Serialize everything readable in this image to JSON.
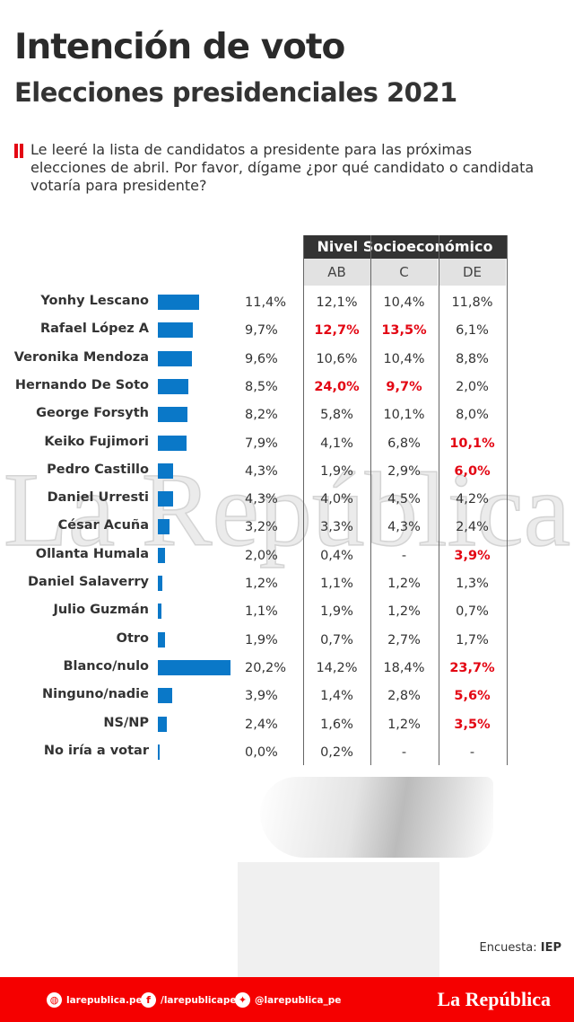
{
  "header": {
    "title": "Intención de voto",
    "subtitle": "Elecciones presidenciales 2021"
  },
  "question": "Le leeré la lista de candidatos a presidente para las próximas elecciones de abril. Por favor, dígame ¿por qué candidato o candidata votaría para presidente?",
  "watermark": "La República",
  "table": {
    "group_header": "Nivel Socioeconómico",
    "columns": [
      "AB",
      "C",
      "DE"
    ]
  },
  "colors": {
    "bar": "#0a78c8",
    "highlight": "#e30613",
    "footer": "#f50000"
  },
  "chart_data": {
    "type": "bar",
    "categories": [
      "Yonhy Lescano",
      "Rafael López  A",
      "Veronika Mendoza",
      "Hernando De Soto",
      "George Forsyth",
      "Keiko Fujimori",
      "Pedro Castillo",
      "Daniel Urresti",
      "César Acuña",
      "Ollanta Humala",
      "Daniel Salaverry",
      "Julio Guzmán",
      "Otro",
      "Blanco/nulo",
      "Ninguno/nadie",
      "NS/NP",
      "No iría a votar"
    ],
    "values": [
      11.4,
      9.7,
      9.6,
      8.5,
      8.2,
      7.9,
      4.3,
      4.3,
      3.2,
      2.0,
      1.2,
      1.1,
      1.9,
      20.2,
      3.9,
      2.4,
      0.0
    ],
    "labels": [
      "11,4%",
      "9,7%",
      "9,6%",
      "8,5%",
      "8,2%",
      "7,9%",
      "4,3%",
      "4,3%",
      "3,2%",
      "2,0%",
      "1,2%",
      "1,1%",
      "1,9%",
      "20,2%",
      "3,9%",
      "2,4%",
      "0,0%"
    ],
    "breakdown": [
      [
        {
          "v": "12,1%"
        },
        {
          "v": "10,4%"
        },
        {
          "v": "11,8%"
        }
      ],
      [
        {
          "v": "12,7%",
          "hl": true
        },
        {
          "v": "13,5%",
          "hl": true
        },
        {
          "v": "6,1%"
        }
      ],
      [
        {
          "v": "10,6%"
        },
        {
          "v": "10,4%"
        },
        {
          "v": "8,8%"
        }
      ],
      [
        {
          "v": "24,0%",
          "hl": true
        },
        {
          "v": "9,7%",
          "hl": true
        },
        {
          "v": "2,0%"
        }
      ],
      [
        {
          "v": "5,8%"
        },
        {
          "v": "10,1%"
        },
        {
          "v": "8,0%"
        }
      ],
      [
        {
          "v": "4,1%"
        },
        {
          "v": "6,8%"
        },
        {
          "v": "10,1%",
          "hl": true
        }
      ],
      [
        {
          "v": "1,9%"
        },
        {
          "v": "2,9%"
        },
        {
          "v": "6,0%",
          "hl": true
        }
      ],
      [
        {
          "v": "4,0%"
        },
        {
          "v": "4,5%"
        },
        {
          "v": "4,2%"
        }
      ],
      [
        {
          "v": "3,3%"
        },
        {
          "v": "4,3%"
        },
        {
          "v": "2,4%"
        }
      ],
      [
        {
          "v": "0,4%"
        },
        {
          "v": "-"
        },
        {
          "v": "3,9%",
          "hl": true
        }
      ],
      [
        {
          "v": "1,1%"
        },
        {
          "v": "1,2%"
        },
        {
          "v": "1,3%"
        }
      ],
      [
        {
          "v": "1,9%"
        },
        {
          "v": "1,2%"
        },
        {
          "v": "0,7%"
        }
      ],
      [
        {
          "v": "0,7%"
        },
        {
          "v": "2,7%"
        },
        {
          "v": "1,7%"
        }
      ],
      [
        {
          "v": "14,2%"
        },
        {
          "v": "18,4%"
        },
        {
          "v": "23,7%",
          "hl": true
        }
      ],
      [
        {
          "v": "1,4%"
        },
        {
          "v": "2,8%"
        },
        {
          "v": "5,6%",
          "hl": true
        }
      ],
      [
        {
          "v": "1,6%"
        },
        {
          "v": "1,2%"
        },
        {
          "v": "3,5%",
          "hl": true
        }
      ],
      [
        {
          "v": "0,2%"
        },
        {
          "v": "-"
        },
        {
          "v": "-"
        }
      ]
    ]
  },
  "source": {
    "label": "Encuesta:",
    "value": "IEP"
  },
  "footer": {
    "web": "larepublica.pe",
    "facebook": "/larepublicape",
    "twitter": "@larepublica_pe",
    "logo": "La República"
  }
}
